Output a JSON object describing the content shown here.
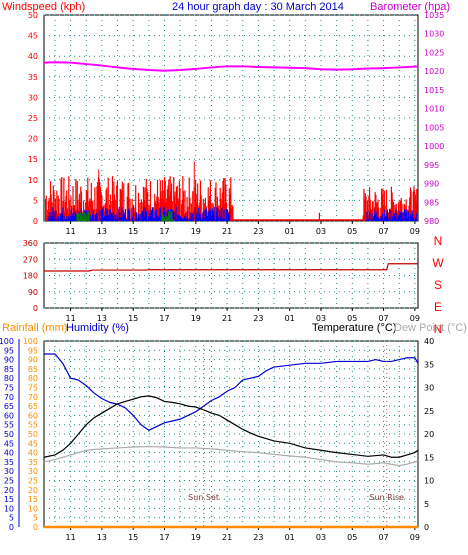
{
  "chart_data": [
    {
      "panel": "top",
      "type": "line",
      "title": "24 hour graph day : 30 March 2014",
      "left_axis_label": "Windspeed (kph)",
      "right_axis_label": "Barometer (hpa)",
      "left_ylim": [
        0,
        50
      ],
      "left_ticks": [
        "0",
        "5",
        "10",
        "15",
        "20",
        "25",
        "30",
        "35",
        "40",
        "45",
        "50"
      ],
      "right_ylim": [
        980,
        1035
      ],
      "right_ticks": [
        "980",
        "985",
        "990",
        "995",
        "1000",
        "1005",
        "1010",
        "1015",
        "1020",
        "1025",
        "1030",
        "1035"
      ],
      "x_tick_labels": [
        "11",
        "13",
        "15",
        "17",
        "19",
        "21",
        "23",
        "01",
        "03",
        "05",
        "07",
        "09"
      ],
      "grid": true,
      "colors": {
        "windspeed": "#ff0000",
        "barometer": "#ff00ff",
        "gust_avg": "#0000ff",
        "green": "#008000",
        "left_label": "#ff0000",
        "right_label": "#cc00cc",
        "title": "#0000cc"
      },
      "series": [
        {
          "name": "Barometer (hpa)",
          "axis": "right",
          "x": [
            9.3,
            10,
            11,
            12,
            13,
            14,
            15,
            16,
            17,
            18,
            19,
            20,
            21,
            22,
            23,
            24,
            25,
            26,
            27,
            28,
            29,
            30,
            31,
            32,
            33,
            33.2
          ],
          "values": [
            1022.3,
            1022.4,
            1022.3,
            1021.9,
            1021.5,
            1021.0,
            1020.6,
            1020.3,
            1020.1,
            1020.3,
            1020.6,
            1021.0,
            1021.3,
            1021.3,
            1021.1,
            1021.0,
            1020.9,
            1020.8,
            1020.5,
            1020.4,
            1020.5,
            1020.7,
            1020.8,
            1021.0,
            1021.2,
            1021.2
          ]
        }
      ]
    },
    {
      "panel": "middle",
      "type": "line",
      "ylim": [
        0,
        360
      ],
      "left_ticks": [
        "0",
        "90",
        "180",
        "270",
        "360"
      ],
      "right_labels": [
        "N",
        "W",
        "S",
        "E",
        "N"
      ],
      "x_tick_labels": [
        "11",
        "13",
        "15",
        "17",
        "19",
        "21",
        "23",
        "01",
        "03",
        "05",
        "07",
        "09"
      ],
      "grid": true,
      "colors": {
        "direction": "#c00000",
        "compass": "#ff0000"
      },
      "series": [
        {
          "name": "",
          "x": [
            9.3,
            12.2,
            12.4,
            15.8,
            16.0,
            31.2,
            31.3,
            33.2
          ],
          "values": [
            205,
            205,
            210,
            210,
            212,
            212,
            245,
            245
          ]
        }
      ]
    },
    {
      "panel": "bottom",
      "type": "line",
      "left_axis_label_1": "Rainfall (mm)",
      "left_axis_label_2": "Humidity (%)",
      "right_axis_label_1": "Temperature (°C)",
      "right_axis_label_2": "Dew Point (°C)",
      "left_ylim": [
        0,
        100
      ],
      "left_ticks": [
        "0",
        "5",
        "10",
        "15",
        "20",
        "25",
        "30",
        "35",
        "40",
        "45",
        "50",
        "55",
        "60",
        "65",
        "70",
        "75",
        "80",
        "85",
        "90",
        "95",
        "100"
      ],
      "right_ylim": [
        0,
        40
      ],
      "right_ticks": [
        "0",
        "5",
        "10",
        "15",
        "20",
        "25",
        "30",
        "35",
        "40"
      ],
      "x_tick_labels": [
        "11",
        "13",
        "15",
        "17",
        "19",
        "21",
        "23",
        "01",
        "03",
        "05",
        "07",
        "09"
      ],
      "annotations": [
        "Sun Set",
        "Sun Rise"
      ],
      "grid": true,
      "colors": {
        "rainfall": "#ff8c00",
        "humidity": "#0000cc",
        "temperature": "#000000",
        "dewpoint": "#aaaaaa",
        "rain_label": "#ff8c00",
        "hum_label": "#0000cc",
        "temp_label": "#000000",
        "dew_label": "#aaaaaa",
        "annotation": "#804040"
      },
      "series": [
        {
          "name": "Humidity (%)",
          "axis": "left",
          "x": [
            9.3,
            10,
            10.5,
            11,
            11.5,
            12,
            12.5,
            13,
            13.5,
            14,
            14.5,
            15,
            15.5,
            16,
            16.5,
            17,
            17.5,
            18,
            18.5,
            19,
            19.5,
            20,
            20.5,
            21,
            21.5,
            22,
            22.5,
            23,
            23.5,
            24,
            25,
            26,
            27,
            28,
            29,
            30,
            30.5,
            31,
            31.5,
            32,
            32.5,
            33,
            33.2
          ],
          "values": [
            93,
            93,
            88,
            80,
            79,
            76,
            72,
            69,
            67,
            66,
            64,
            60,
            55,
            52,
            54,
            56,
            57,
            58,
            60,
            62,
            65,
            68,
            70,
            73,
            75,
            79,
            80,
            81,
            84,
            86,
            87,
            88,
            88,
            89,
            89,
            89,
            90,
            89,
            89,
            90,
            91,
            91,
            88
          ]
        },
        {
          "name": "Temperature (°C)",
          "axis": "right",
          "x": [
            9.3,
            10,
            10.5,
            11,
            11.5,
            12,
            12.5,
            13,
            13.5,
            14,
            14.5,
            15,
            15.5,
            16,
            16.5,
            17,
            17.5,
            18,
            18.5,
            19,
            19.5,
            20,
            20.5,
            21,
            21.5,
            22,
            22.5,
            23,
            24,
            25,
            26,
            27,
            28,
            29,
            30,
            31,
            31.5,
            32,
            32.5,
            33,
            33.2
          ],
          "values": [
            15,
            15.5,
            16.5,
            18,
            20,
            22,
            23.5,
            24.5,
            25.5,
            26.5,
            27,
            27.5,
            28,
            28.2,
            27.8,
            27,
            26.8,
            26.5,
            26,
            25.8,
            25.2,
            24.5,
            24,
            23,
            22,
            21,
            20.2,
            19.5,
            18.5,
            18,
            17,
            16.5,
            16,
            15.6,
            15.2,
            15.5,
            15,
            15,
            15.5,
            16,
            16.5
          ]
        },
        {
          "name": "Dew Point (°C)",
          "axis": "right",
          "x": [
            9.3,
            10,
            11,
            12,
            13,
            14,
            15,
            16,
            17,
            18,
            19,
            20,
            21,
            22,
            23,
            24,
            25,
            26,
            27,
            28,
            29,
            30,
            31,
            31.5,
            32,
            32.5,
            33,
            33.2
          ],
          "values": [
            14,
            14.5,
            15.5,
            16.5,
            16.8,
            17,
            17.2,
            17.3,
            17.2,
            17,
            17,
            16.8,
            16.5,
            16.2,
            16,
            15.6,
            15.3,
            15,
            14.5,
            14,
            13.8,
            13.5,
            13.8,
            13.5,
            13.2,
            13.5,
            14,
            14.2
          ]
        },
        {
          "name": "Rainfall (mm)",
          "axis": "left",
          "x": [
            9.3,
            33.2
          ],
          "values": [
            0,
            0
          ]
        }
      ]
    }
  ]
}
